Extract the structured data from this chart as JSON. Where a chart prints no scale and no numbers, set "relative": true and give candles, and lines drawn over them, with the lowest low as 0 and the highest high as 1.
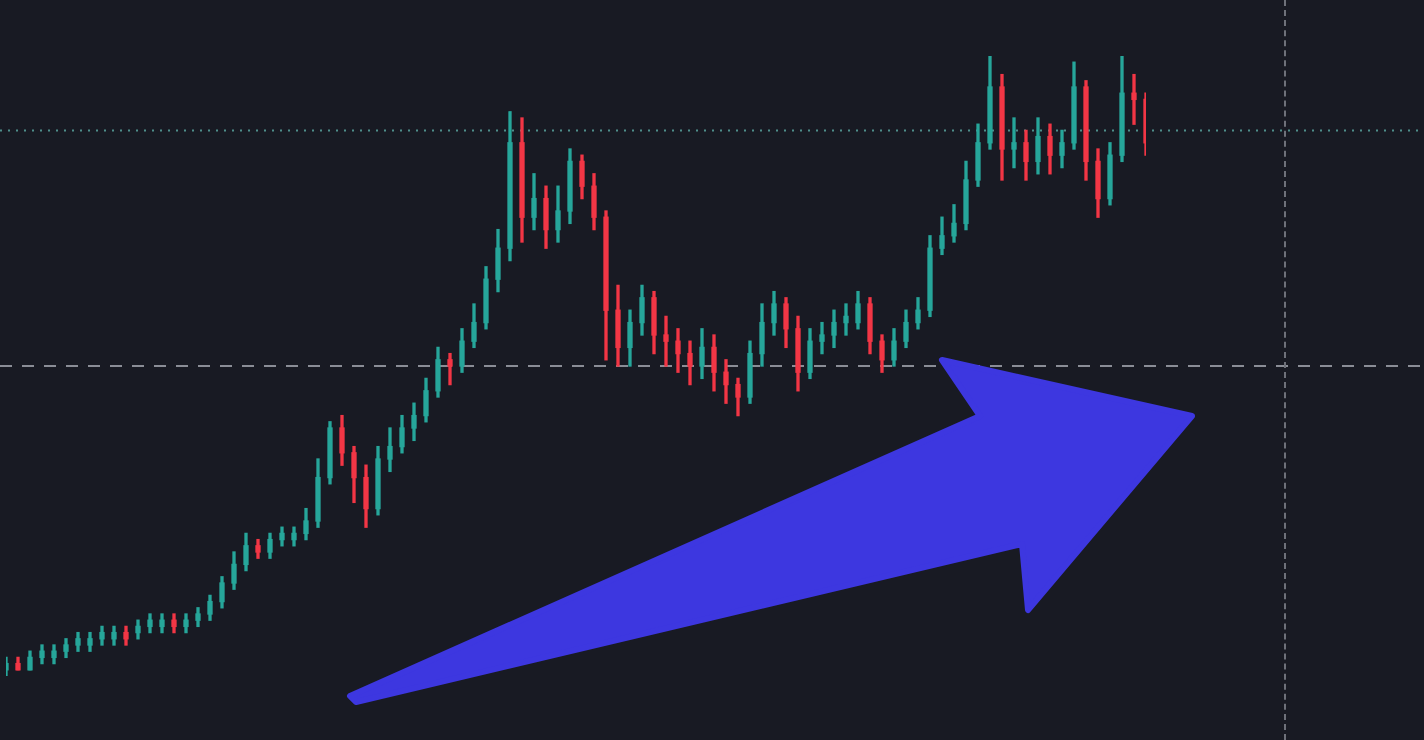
{
  "chart_data": {
    "type": "candlestick",
    "relative": true,
    "legend": false,
    "categories": [
      null,
      null,
      null,
      null,
      null,
      null,
      null,
      null,
      null,
      null,
      null,
      null,
      null,
      null,
      null,
      null,
      null,
      null,
      null,
      null,
      null,
      null,
      null,
      null,
      null,
      null,
      null,
      null,
      null,
      null,
      null,
      null,
      null,
      null,
      null,
      null,
      null,
      null,
      null,
      null,
      null,
      null,
      null,
      null,
      null,
      null,
      null,
      null,
      null,
      null,
      null,
      null,
      null,
      null,
      null,
      null,
      null,
      null,
      null,
      null,
      null,
      null,
      null,
      null,
      null,
      null,
      null,
      null,
      null,
      null,
      null,
      null,
      null,
      null,
      null,
      null,
      null,
      null,
      null,
      null,
      null,
      null,
      null,
      null,
      null,
      null,
      null,
      null,
      null,
      null,
      null,
      null,
      null,
      null,
      null,
      null
    ],
    "ohlc": [
      [
        0.01,
        0.03,
        0,
        0.02
      ],
      [
        0.02,
        0.03,
        0.01,
        0.01
      ],
      [
        0.01,
        0.04,
        0.01,
        0.03
      ],
      [
        0.03,
        0.05,
        0.02,
        0.04
      ],
      [
        0.03,
        0.05,
        0.02,
        0.04
      ],
      [
        0.04,
        0.06,
        0.03,
        0.05
      ],
      [
        0.05,
        0.07,
        0.04,
        0.06
      ],
      [
        0.05,
        0.07,
        0.04,
        0.06
      ],
      [
        0.06,
        0.08,
        0.05,
        0.07
      ],
      [
        0.06,
        0.08,
        0.05,
        0.07
      ],
      [
        0.07,
        0.08,
        0.05,
        0.06
      ],
      [
        0.07,
        0.09,
        0.06,
        0.08
      ],
      [
        0.08,
        0.1,
        0.07,
        0.09
      ],
      [
        0.08,
        0.1,
        0.07,
        0.09
      ],
      [
        0.09,
        0.1,
        0.07,
        0.08
      ],
      [
        0.08,
        0.1,
        0.07,
        0.09
      ],
      [
        0.09,
        0.11,
        0.08,
        0.1
      ],
      [
        0.1,
        0.13,
        0.09,
        0.12
      ],
      [
        0.12,
        0.16,
        0.11,
        0.15
      ],
      [
        0.15,
        0.2,
        0.14,
        0.18
      ],
      [
        0.18,
        0.23,
        0.17,
        0.21
      ],
      [
        0.21,
        0.22,
        0.19,
        0.2
      ],
      [
        0.2,
        0.23,
        0.19,
        0.22
      ],
      [
        0.22,
        0.24,
        0.21,
        0.23
      ],
      [
        0.22,
        0.24,
        0.21,
        0.23
      ],
      [
        0.23,
        0.27,
        0.22,
        0.25
      ],
      [
        0.25,
        0.35,
        0.24,
        0.32
      ],
      [
        0.32,
        0.41,
        0.31,
        0.4
      ],
      [
        0.4,
        0.42,
        0.34,
        0.36
      ],
      [
        0.36,
        0.37,
        0.28,
        0.32
      ],
      [
        0.32,
        0.34,
        0.24,
        0.27
      ],
      [
        0.27,
        0.37,
        0.26,
        0.35
      ],
      [
        0.35,
        0.4,
        0.33,
        0.37
      ],
      [
        0.37,
        0.42,
        0.36,
        0.4
      ],
      [
        0.4,
        0.44,
        0.38,
        0.42
      ],
      [
        0.42,
        0.48,
        0.41,
        0.46
      ],
      [
        0.46,
        0.53,
        0.45,
        0.51
      ],
      [
        0.51,
        0.52,
        0.47,
        0.5
      ],
      [
        0.5,
        0.56,
        0.49,
        0.54
      ],
      [
        0.54,
        0.6,
        0.53,
        0.57
      ],
      [
        0.57,
        0.66,
        0.56,
        0.64
      ],
      [
        0.64,
        0.72,
        0.62,
        0.69
      ],
      [
        0.69,
        0.91,
        0.67,
        0.86
      ],
      [
        0.86,
        0.9,
        0.7,
        0.74
      ],
      [
        0.74,
        0.81,
        0.72,
        0.77
      ],
      [
        0.77,
        0.79,
        0.69,
        0.72
      ],
      [
        0.72,
        0.79,
        0.7,
        0.75
      ],
      [
        0.75,
        0.85,
        0.73,
        0.83
      ],
      [
        0.83,
        0.84,
        0.77,
        0.79
      ],
      [
        0.79,
        0.81,
        0.72,
        0.74
      ],
      [
        0.74,
        0.75,
        0.51,
        0.59
      ],
      [
        0.59,
        0.63,
        0.5,
        0.53
      ],
      [
        0.53,
        0.59,
        0.5,
        0.57
      ],
      [
        0.57,
        0.63,
        0.55,
        0.61
      ],
      [
        0.61,
        0.62,
        0.52,
        0.55
      ],
      [
        0.55,
        0.58,
        0.5,
        0.54
      ],
      [
        0.54,
        0.56,
        0.49,
        0.52
      ],
      [
        0.52,
        0.54,
        0.47,
        0.5
      ],
      [
        0.5,
        0.56,
        0.48,
        0.53
      ],
      [
        0.53,
        0.55,
        0.46,
        0.49
      ],
      [
        0.49,
        0.51,
        0.44,
        0.47
      ],
      [
        0.47,
        0.48,
        0.42,
        0.45
      ],
      [
        0.45,
        0.54,
        0.44,
        0.52
      ],
      [
        0.52,
        0.6,
        0.5,
        0.57
      ],
      [
        0.57,
        0.62,
        0.55,
        0.6
      ],
      [
        0.6,
        0.61,
        0.53,
        0.56
      ],
      [
        0.56,
        0.58,
        0.46,
        0.49
      ],
      [
        0.49,
        0.56,
        0.48,
        0.54
      ],
      [
        0.54,
        0.57,
        0.52,
        0.55
      ],
      [
        0.55,
        0.59,
        0.53,
        0.57
      ],
      [
        0.57,
        0.6,
        0.55,
        0.58
      ],
      [
        0.57,
        0.62,
        0.56,
        0.6
      ],
      [
        0.6,
        0.61,
        0.52,
        0.54
      ],
      [
        0.54,
        0.55,
        0.49,
        0.51
      ],
      [
        0.51,
        0.56,
        0.5,
        0.54
      ],
      [
        0.54,
        0.59,
        0.53,
        0.57
      ],
      [
        0.57,
        0.61,
        0.56,
        0.59
      ],
      [
        0.59,
        0.71,
        0.58,
        0.69
      ],
      [
        0.69,
        0.74,
        0.68,
        0.71
      ],
      [
        0.71,
        0.76,
        0.7,
        0.73
      ],
      [
        0.73,
        0.83,
        0.72,
        0.8
      ],
      [
        0.8,
        0.89,
        0.79,
        0.86
      ],
      [
        0.86,
        1,
        0.85,
        0.95
      ],
      [
        0.95,
        0.97,
        0.8,
        0.85
      ],
      [
        0.85,
        0.9,
        0.82,
        0.86
      ],
      [
        0.86,
        0.88,
        0.8,
        0.83
      ],
      [
        0.83,
        0.9,
        0.81,
        0.87
      ],
      [
        0.87,
        0.89,
        0.81,
        0.84
      ],
      [
        0.84,
        0.88,
        0.82,
        0.86
      ],
      [
        0.86,
        0.99,
        0.85,
        0.95
      ],
      [
        0.95,
        0.96,
        0.8,
        0.83
      ],
      [
        0.83,
        0.85,
        0.74,
        0.77
      ],
      [
        0.77,
        0.86,
        0.76,
        0.84
      ],
      [
        0.84,
        1,
        0.83,
        0.94
      ],
      [
        0.94,
        0.97,
        0.89,
        0.93
      ],
      [
        0.93,
        0.94,
        0.84,
        0.86
      ]
    ],
    "ref_lines": [
      {
        "axis": "y",
        "value": 0.88,
        "color": "#4f8f8c",
        "line_style": "dotted"
      },
      {
        "axis": "y",
        "value": 0.5,
        "color": "#8a8d96",
        "line_style": "dashed"
      }
    ]
  }
}
